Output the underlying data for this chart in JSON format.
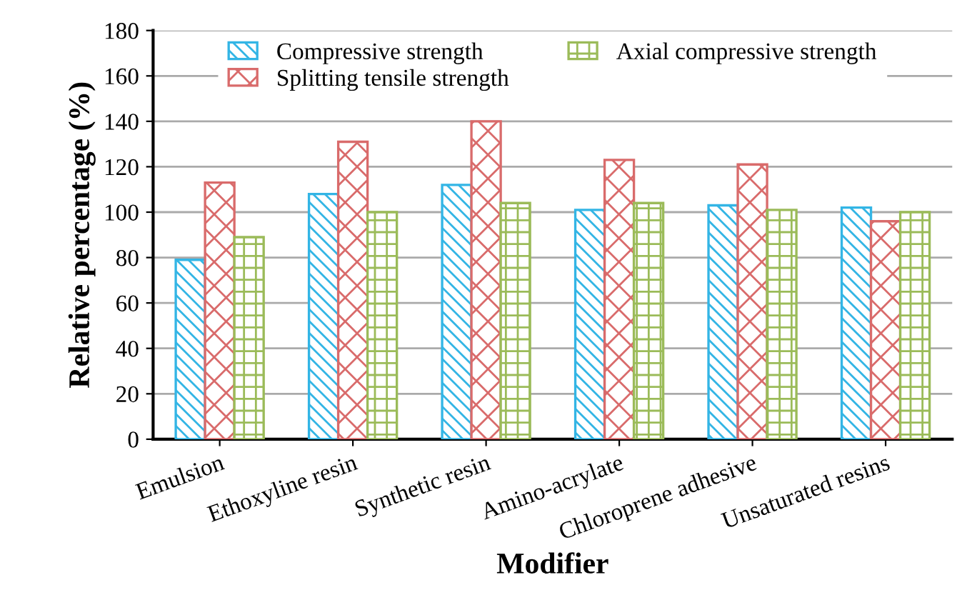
{
  "chart_data": {
    "type": "bar",
    "xlabel": "Modifier",
    "ylabel": "Relative percentage (%)",
    "categories": [
      "Emulsion",
      "Ethoxyline resin",
      "Synthetic resin",
      "Amino-acrylate",
      "Chloroprene adhesive",
      "Unsaturated resins"
    ],
    "series": [
      {
        "name": "Compressive strength",
        "color": "#33b5e5",
        "values": [
          79,
          108,
          112,
          101,
          103,
          102
        ]
      },
      {
        "name": "Splitting tensile strength",
        "color": "#d96b6b",
        "values": [
          113,
          131,
          140,
          123,
          121,
          96
        ]
      },
      {
        "name": "Axial compressive strength",
        "color": "#9bbb59",
        "values": [
          89,
          100,
          104,
          104,
          101,
          100
        ]
      }
    ],
    "ylim": [
      0,
      180
    ],
    "yticks": [
      0,
      20,
      40,
      60,
      80,
      100,
      120,
      140,
      160,
      180
    ],
    "grid": "y",
    "legend": "top"
  }
}
